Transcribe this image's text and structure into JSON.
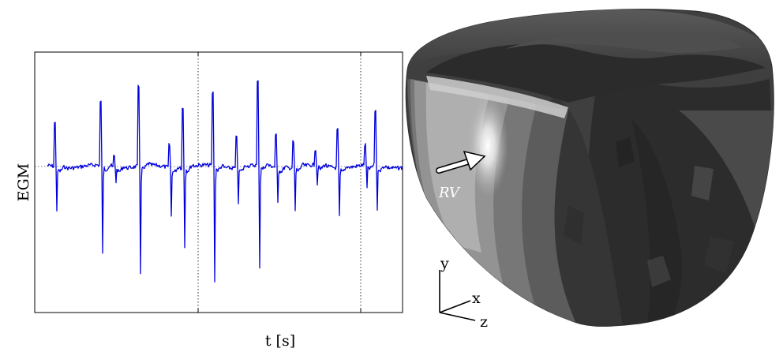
{
  "egm_panel": {
    "xlabel": "t [s]",
    "ylabel": "EGM",
    "trace_color": "#0000dd",
    "frame_color": "#000000",
    "grid": "dotted vertical lines at two ticks",
    "ticks_labelled": false
  },
  "heart_panel": {
    "annotation": "RV",
    "axes": {
      "y": "y",
      "x": "x",
      "z": "z"
    },
    "shading": "grayscale activation map"
  }
}
